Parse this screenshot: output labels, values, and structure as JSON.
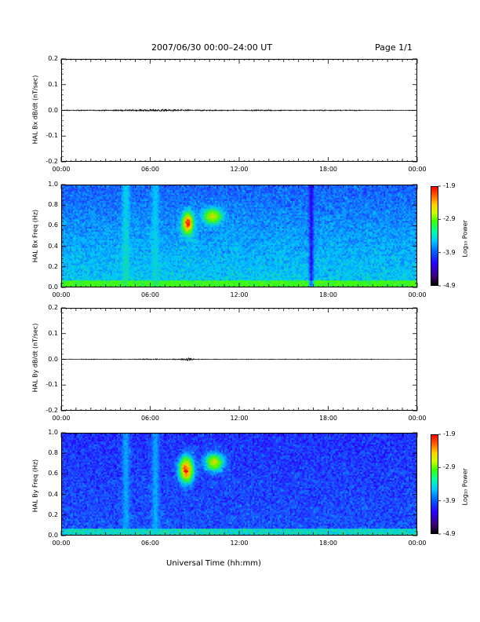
{
  "header": {
    "title": "2007/06/30  00:00–24:00 UT",
    "page": "Page 1/1"
  },
  "xlabel": "Universal Time (hh:mm)",
  "colors": {
    "trace": "#000000",
    "colormap": [
      "#000000",
      "#2a00ff",
      "#00c8ff",
      "#40ff00",
      "#ffd000",
      "#ff0000"
    ]
  },
  "chart_data": [
    {
      "type": "line",
      "ylabel": "HAL Bx dB/dt (nT/sec)",
      "xlim": [
        "00:00",
        "24:00"
      ],
      "ylim": [
        -0.2,
        0.2
      ],
      "y_ticks": [
        "0.2",
        "0.1",
        "0.0",
        "-0.1",
        "-0.2"
      ],
      "x_ticks": [
        "00:00",
        "06:00",
        "12:00",
        "18:00",
        "00:00"
      ],
      "envelope": {
        "x_hours": [
          0,
          2,
          4,
          5,
          6,
          7,
          8,
          9,
          10,
          12,
          14,
          16,
          18,
          20,
          22,
          24
        ],
        "amplitude": [
          0.003,
          0.003,
          0.004,
          0.006,
          0.008,
          0.008,
          0.006,
          0.005,
          0.004,
          0.003,
          0.004,
          0.003,
          0.004,
          0.003,
          0.002,
          0.002
        ]
      }
    },
    {
      "type": "heatmap",
      "ylabel": "HAL Bx Freq (Hz)",
      "xlim": [
        "00:00",
        "24:00"
      ],
      "ylim": [
        0.0,
        1.0
      ],
      "y_ticks": [
        "1.0",
        "0.8",
        "0.6",
        "0.4",
        "0.2",
        "0.0"
      ],
      "x_ticks": [
        "00:00",
        "06:00",
        "12:00",
        "18:00",
        "00:00"
      ],
      "colorbar": {
        "label": "Log₁₀ Power",
        "ticks": [
          "-1.9",
          "-2.9",
          "-3.9",
          "-4.9"
        ],
        "range": [
          -4.9,
          -1.9
        ]
      },
      "features": [
        {
          "type": "blob",
          "t": 8.5,
          "f": 0.63,
          "dt": 0.35,
          "df": 0.1,
          "power": -1.9
        },
        {
          "type": "blob",
          "t": 10.2,
          "f": 0.7,
          "dt": 0.6,
          "df": 0.07,
          "power": -2.6
        },
        {
          "type": "band",
          "t": 4.3,
          "dt": 0.25,
          "power": -3.4
        },
        {
          "type": "band",
          "t": 6.3,
          "dt": 0.25,
          "power": -3.5
        },
        {
          "type": "band",
          "t": 16.9,
          "dt": 0.15,
          "power": -4.6
        }
      ]
    },
    {
      "type": "line",
      "ylabel": "HAL By dB/dt (nT/sec)",
      "xlim": [
        "00:00",
        "24:00"
      ],
      "ylim": [
        -0.2,
        0.2
      ],
      "y_ticks": [
        "0.2",
        "0.1",
        "0.0",
        "-0.1",
        "-0.2"
      ],
      "x_ticks": [
        "00:00",
        "06:00",
        "12:00",
        "18:00",
        "00:00"
      ],
      "envelope": {
        "x_hours": [
          0,
          2,
          4,
          6,
          8,
          8.6,
          9,
          10,
          12,
          14,
          16,
          18,
          20,
          22,
          24
        ],
        "amplitude": [
          0.002,
          0.002,
          0.002,
          0.003,
          0.003,
          0.012,
          0.003,
          0.002,
          0.002,
          0.002,
          0.002,
          0.002,
          0.002,
          0.001,
          0.001
        ]
      }
    },
    {
      "type": "heatmap",
      "ylabel": "HAL By Freq (Hz)",
      "xlim": [
        "00:00",
        "24:00"
      ],
      "ylim": [
        0.0,
        1.0
      ],
      "y_ticks": [
        "1.0",
        "0.8",
        "0.6",
        "0.4",
        "0.2",
        "0.0"
      ],
      "x_ticks": [
        "00:00",
        "06:00",
        "12:00",
        "18:00",
        "00:00"
      ],
      "colorbar": {
        "label": "Log₁₀ Power",
        "ticks": [
          "-1.9",
          "-2.9",
          "-3.9",
          "-4.9"
        ],
        "range": [
          -4.9,
          -1.9
        ]
      },
      "features": [
        {
          "type": "blob",
          "t": 8.4,
          "f": 0.65,
          "dt": 0.45,
          "df": 0.12,
          "power": -1.9
        },
        {
          "type": "blob",
          "t": 10.3,
          "f": 0.72,
          "dt": 0.6,
          "df": 0.08,
          "power": -2.6
        },
        {
          "type": "band",
          "t": 4.3,
          "dt": 0.25,
          "power": -3.6
        },
        {
          "type": "band",
          "t": 6.3,
          "dt": 0.25,
          "power": -3.6
        }
      ]
    }
  ]
}
